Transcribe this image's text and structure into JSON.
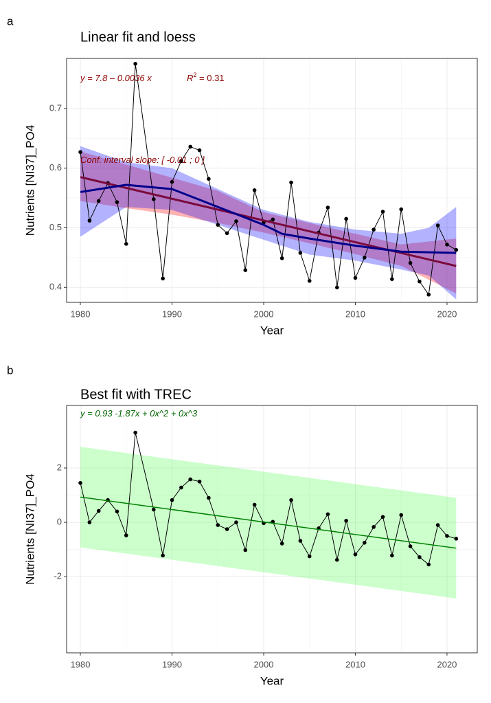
{
  "chart_data": [
    {
      "type": "line",
      "panel": "a",
      "title": "Linear fit and loess",
      "xlabel": "Year",
      "ylabel": "Nutrients [NI37]_PO4",
      "xlim": [
        1978.5,
        2023.3
      ],
      "xticks": [
        1980,
        1990,
        2000,
        2010,
        2020
      ],
      "ylim": [
        0.375,
        0.784
      ],
      "yticks": [
        0.4,
        0.5,
        0.6,
        0.7
      ],
      "grid": true,
      "annotations": [
        {
          "parts": [
            "y = 7.8 – 0.0036 x"
          ],
          "color": "#8b0000"
        },
        {
          "parts": [
            "R",
            "2",
            " = 0.31"
          ],
          "color": "#8b0000"
        },
        {
          "parts": [
            "Conf. interval slope: [ -0.01 ; 0 ]"
          ],
          "color": "#8b0000"
        }
      ],
      "bands": [
        {
          "x": [
            1980,
            1985,
            1990,
            1995,
            2000,
            2005,
            2010,
            2015,
            2021
          ],
          "lower": [
            0.545,
            0.533,
            0.522,
            0.508,
            0.492,
            0.474,
            0.456,
            0.436,
            0.39
          ],
          "upper": [
            0.628,
            0.606,
            0.584,
            0.562,
            0.526,
            0.508,
            0.49,
            0.472,
            0.482
          ],
          "color": "#ff0000",
          "opacity": 0.3
        },
        {
          "x": [
            1980,
            1985,
            1990,
            1995,
            2000,
            2005,
            2010,
            2015,
            2018,
            2021
          ],
          "lower": [
            0.485,
            0.535,
            0.53,
            0.505,
            0.48,
            0.455,
            0.445,
            0.43,
            0.42,
            0.38
          ],
          "upper": [
            0.637,
            0.61,
            0.6,
            0.565,
            0.53,
            0.51,
            0.497,
            0.49,
            0.5,
            0.535
          ],
          "color": "#0000ff",
          "opacity": 0.3
        }
      ],
      "series": [
        {
          "x": [
            1980,
            1981,
            1982,
            1983,
            1984,
            1985,
            1986,
            1988,
            1989,
            1990,
            1991,
            1992,
            1993,
            1994,
            1995,
            1996,
            1997,
            1998,
            1999,
            2000,
            2001,
            2002,
            2003,
            2004,
            2005,
            2006,
            2007,
            2008,
            2009,
            2010,
            2011,
            2012,
            2013,
            2014,
            2015,
            2016,
            2017,
            2018,
            2019,
            2020,
            2021
          ],
          "values": [
            0.627,
            0.512,
            0.545,
            0.575,
            0.543,
            0.473,
            0.775,
            0.548,
            0.415,
            0.577,
            0.612,
            0.636,
            0.63,
            0.582,
            0.505,
            0.491,
            0.511,
            0.429,
            0.563,
            0.509,
            0.514,
            0.449,
            0.576,
            0.458,
            0.411,
            0.492,
            0.534,
            0.4,
            0.515,
            0.416,
            0.45,
            0.497,
            0.527,
            0.414,
            0.531,
            0.441,
            0.41,
            0.388,
            0.504,
            0.472,
            0.463
          ],
          "color": "#000000",
          "markers": true,
          "width": 1
        },
        {
          "x": [
            1980,
            2021
          ],
          "values": [
            0.585,
            0.436
          ],
          "color": "#7a0a3c",
          "markers": false,
          "width": 3
        },
        {
          "x": [
            1980,
            1985,
            1990,
            1995,
            2000,
            2002,
            2005,
            2010,
            2015,
            2021
          ],
          "values": [
            0.56,
            0.572,
            0.565,
            0.535,
            0.505,
            0.49,
            0.482,
            0.47,
            0.46,
            0.458
          ],
          "color": "#00008b",
          "markers": false,
          "width": 3
        }
      ]
    },
    {
      "type": "line",
      "panel": "b",
      "title": "Best fit with TREC",
      "xlabel": "Year",
      "ylabel": "Nutrients [NI37]_PO4",
      "xlim": [
        1978.5,
        2023.3
      ],
      "xticks": [
        1980,
        1990,
        2000,
        2010,
        2020
      ],
      "ylim": [
        -4.8,
        4.3
      ],
      "yticks": [
        -2,
        0,
        2
      ],
      "grid": true,
      "annotations": [
        {
          "parts": [
            "y =  0.93   -1.87x  + 0x^2  + 0x^3"
          ],
          "color": "#006400"
        }
      ],
      "bands": [
        {
          "x": [
            1980,
            2021
          ],
          "lower": [
            -0.92,
            -2.8
          ],
          "upper": [
            2.78,
            0.9
          ],
          "color": "#00ff00",
          "opacity": 0.2
        }
      ],
      "series": [
        {
          "x": [
            1980,
            1981,
            1982,
            1983,
            1984,
            1985,
            1986,
            1988,
            1989,
            1990,
            1991,
            1992,
            1993,
            1994,
            1995,
            1996,
            1997,
            1998,
            1999,
            2000,
            2001,
            2002,
            2003,
            2004,
            2005,
            2006,
            2007,
            2008,
            2009,
            2010,
            2011,
            2012,
            2013,
            2014,
            2015,
            2016,
            2017,
            2018,
            2019,
            2020,
            2021
          ],
          "values": [
            1.45,
            0.0,
            0.42,
            0.82,
            0.4,
            -0.48,
            3.3,
            0.47,
            -1.22,
            0.82,
            1.28,
            1.58,
            1.5,
            0.9,
            -0.1,
            -0.25,
            0.0,
            -1.02,
            0.65,
            -0.03,
            0.02,
            -0.78,
            0.82,
            -0.68,
            -1.25,
            -0.22,
            0.3,
            -1.38,
            0.06,
            -1.18,
            -0.75,
            -0.17,
            0.2,
            -1.22,
            0.27,
            -0.88,
            -1.28,
            -1.55,
            -0.1,
            -0.5,
            -0.6
          ],
          "color": "#000000",
          "markers": true,
          "width": 1
        },
        {
          "x": [
            1980,
            2021
          ],
          "values": [
            0.93,
            -0.95
          ],
          "color": "#008000",
          "markers": false,
          "width": 1.5
        }
      ]
    }
  ]
}
